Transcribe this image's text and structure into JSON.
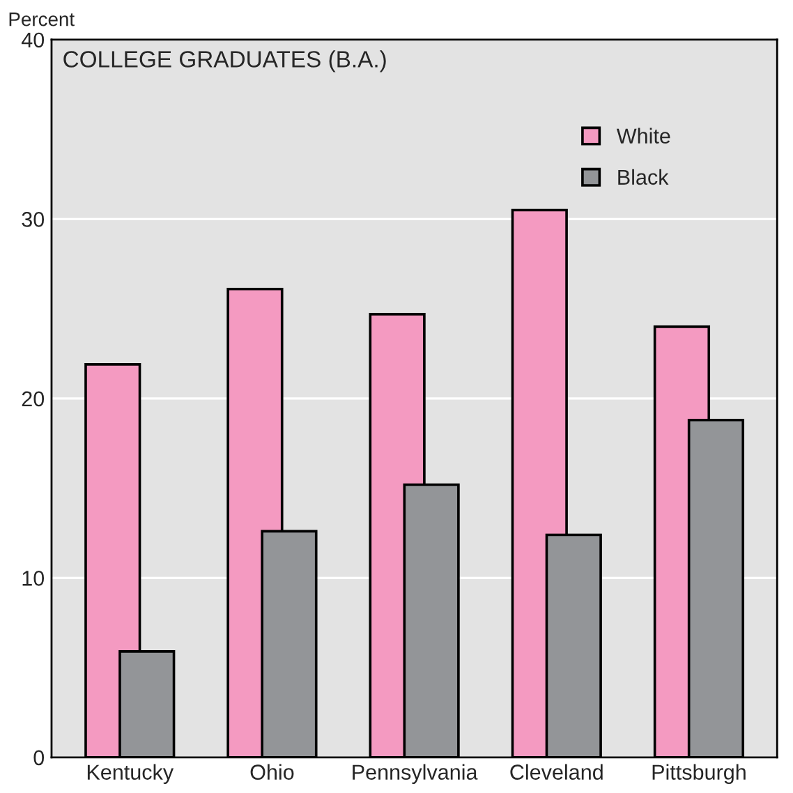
{
  "chart_data": {
    "type": "bar",
    "title": "COLLEGE GRADUATES (B.A.)",
    "ylabel": "Percent",
    "categories": [
      "Kentucky",
      "Ohio",
      "Pennsylvania",
      "Cleveland",
      "Pittsburgh"
    ],
    "series": [
      {
        "name": "White",
        "color": "#f49ac1",
        "values": [
          21.9,
          26.1,
          24.7,
          30.5,
          24.0
        ]
      },
      {
        "name": "Black",
        "color": "#939598",
        "values": [
          5.9,
          12.6,
          15.2,
          12.4,
          18.8
        ]
      }
    ],
    "ylim": [
      0,
      40
    ],
    "yticks": [
      0,
      10,
      20,
      30,
      40
    ],
    "grid": "y",
    "legend": "top right"
  }
}
